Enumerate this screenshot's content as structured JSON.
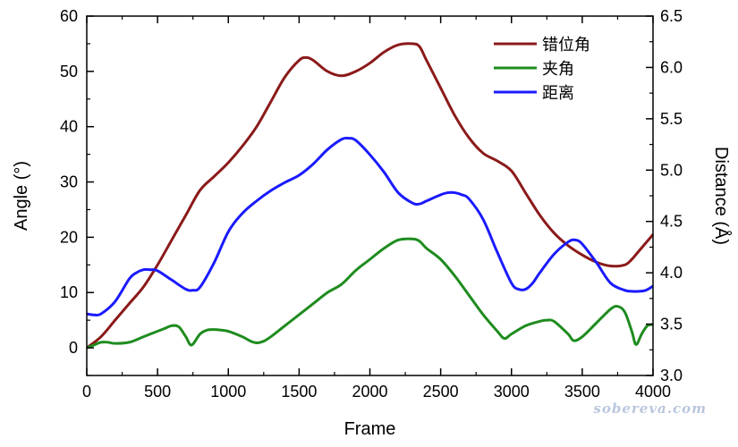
{
  "chart_data": {
    "type": "line",
    "xlabel": "Frame",
    "ylabel": "Angle (°)",
    "y2label": "Distance (Å)",
    "xlim": [
      0,
      4000
    ],
    "ylim": [
      -5,
      60
    ],
    "y2lim": [
      3.0,
      6.5
    ],
    "xticks": [
      "0",
      "500",
      "1000",
      "1500",
      "2000",
      "2500",
      "3000",
      "3500",
      "4000"
    ],
    "yticks": [
      "0",
      "10",
      "20",
      "30",
      "40",
      "50",
      "60"
    ],
    "y2ticks": [
      "3.0",
      "3.5",
      "4.0",
      "4.5",
      "5.0",
      "5.5",
      "6.0",
      "6.5"
    ],
    "grid": false,
    "legend_position": "top-right",
    "watermark": "sobereva.com",
    "series": [
      {
        "name": "错位角",
        "axis": "left",
        "color": "#8b1a1a",
        "x": [
          0,
          100,
          200,
          300,
          400,
          500,
          600,
          700,
          800,
          900,
          1000,
          1100,
          1200,
          1300,
          1400,
          1500,
          1550,
          1600,
          1700,
          1800,
          1900,
          2000,
          2100,
          2200,
          2300,
          2350,
          2400,
          2500,
          2600,
          2700,
          2800,
          2900,
          3000,
          3100,
          3200,
          3300,
          3400,
          3500,
          3600,
          3700,
          3800,
          3850,
          3900,
          4000
        ],
        "y": [
          0,
          2,
          5,
          8,
          11,
          15,
          19.5,
          24,
          28.5,
          31,
          33.5,
          36.5,
          40,
          44.5,
          49,
          52,
          52.5,
          52,
          50,
          49.2,
          50,
          51.5,
          53.5,
          54.8,
          55,
          54.5,
          52,
          47,
          42,
          38,
          35.2,
          33.8,
          32,
          28,
          24,
          20.8,
          18.5,
          16.8,
          15.5,
          14.8,
          15,
          16,
          17.5,
          20.5
        ]
      },
      {
        "name": "夹角",
        "axis": "left",
        "color": "#1e8c1e",
        "x": [
          0,
          50,
          100,
          150,
          200,
          300,
          400,
          500,
          550,
          600,
          650,
          700,
          740,
          800,
          850,
          900,
          950,
          1000,
          1100,
          1150,
          1200,
          1250,
          1300,
          1400,
          1500,
          1600,
          1700,
          1800,
          1900,
          2000,
          2100,
          2200,
          2300,
          2350,
          2400,
          2500,
          2600,
          2700,
          2800,
          2900,
          2950,
          3000,
          3100,
          3200,
          3250,
          3300,
          3400,
          3440,
          3500,
          3600,
          3700,
          3750,
          3800,
          3850,
          3880,
          3920,
          3960,
          4000
        ],
        "y": [
          0,
          0.5,
          1,
          1,
          0.8,
          1,
          2,
          3,
          3.5,
          4,
          3.8,
          2,
          0.5,
          2.5,
          3.2,
          3.3,
          3.2,
          3,
          2,
          1.3,
          0.9,
          1.2,
          2,
          4,
          6,
          8,
          10,
          11.5,
          14,
          16,
          18,
          19.5,
          19.7,
          19.3,
          18,
          16,
          13,
          9.5,
          6,
          3,
          1.7,
          2.5,
          4,
          4.8,
          5,
          4.8,
          2.5,
          1.3,
          2,
          4.5,
          7,
          7.5,
          6.5,
          3,
          0.6,
          2.5,
          4,
          4.2
        ]
      },
      {
        "name": "距离",
        "axis": "right",
        "color": "#1a1aff",
        "x": [
          0,
          50,
          100,
          200,
          300,
          350,
          400,
          450,
          500,
          600,
          700,
          750,
          800,
          900,
          1000,
          1100,
          1200,
          1300,
          1400,
          1500,
          1600,
          1700,
          1800,
          1850,
          1900,
          2000,
          2100,
          2200,
          2300,
          2350,
          2400,
          2500,
          2550,
          2600,
          2650,
          2700,
          2800,
          2900,
          3000,
          3050,
          3100,
          3150,
          3200,
          3300,
          3400,
          3450,
          3500,
          3600,
          3700,
          3800,
          3850,
          3900,
          3950,
          4000
        ],
        "y": [
          3.6,
          3.59,
          3.6,
          3.72,
          3.94,
          4.0,
          4.03,
          4.03,
          4.02,
          3.93,
          3.84,
          3.83,
          3.86,
          4.1,
          4.4,
          4.58,
          4.7,
          4.8,
          4.88,
          4.95,
          5.06,
          5.2,
          5.3,
          5.31,
          5.29,
          5.15,
          4.98,
          4.78,
          4.68,
          4.67,
          4.7,
          4.76,
          4.78,
          4.78,
          4.76,
          4.72,
          4.52,
          4.2,
          3.9,
          3.84,
          3.84,
          3.9,
          4.0,
          4.18,
          4.3,
          4.32,
          4.28,
          4.1,
          3.9,
          3.83,
          3.82,
          3.82,
          3.83,
          3.87
        ]
      }
    ]
  }
}
